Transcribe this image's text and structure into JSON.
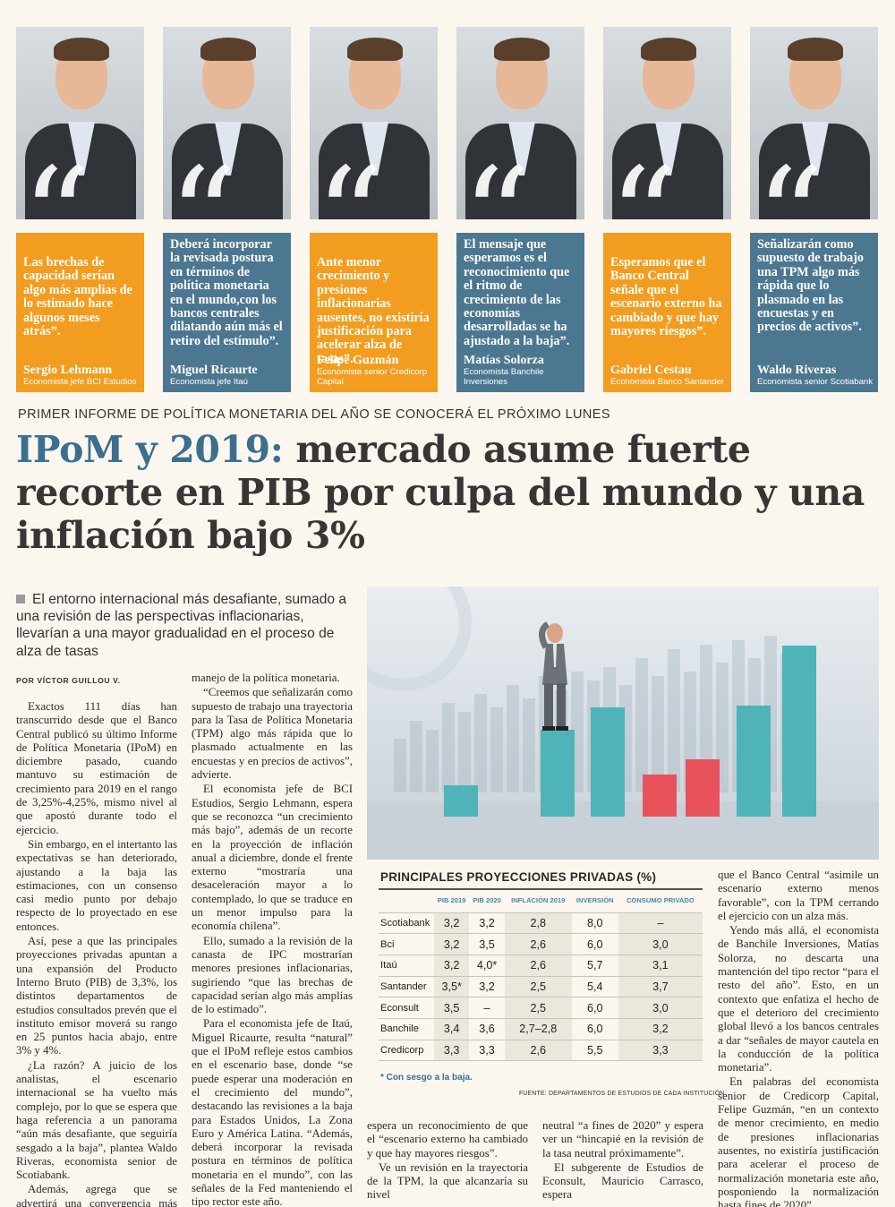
{
  "panels": [
    {
      "color": "orange",
      "quote": "Las brechas de capacidad serían algo más amplias de lo estimado hace algunos meses atrás”.",
      "name": "Sergio Lehmann",
      "role": "Economista jefe BCI Estudios"
    },
    {
      "color": "blue",
      "quote": "Deberá incorporar la revisada postura en términos de política monetaria en el mundo,con los bancos centrales dilatando aún más el retiro del estímulo”.",
      "name": "Miguel Ricaurte",
      "role": "Economista jefe Itaú"
    },
    {
      "color": "orange",
      "quote": "Ante menor crecimiento y presiones inflacionarias ausentes, no existiría justificación para acelerar alza de tasas”.",
      "name": "Felipe Guzmán",
      "role": "Economista senior Credicorp Capital"
    },
    {
      "color": "blue",
      "quote": "El mensaje que esperamos es el reconocimiento que el ritmo de crecimiento de las economías desarrolladas se ha ajustado a la baja”.",
      "name": "Matías Solorza",
      "role": "Economista Banchile Inversiones"
    },
    {
      "color": "orange",
      "quote": "Esperamos que el Banco Central señale que el escenario externo ha cambiado y que hay mayores riesgos”.",
      "name": "Gabriel Cestau",
      "role": "Economista Banco Santander"
    },
    {
      "color": "blue",
      "quote": "Señalizarán como supuesto de trabajo una TPM algo más rápida que lo plasmado en las encuestas y en precios de activos”.",
      "name": "Waldo Riveras",
      "role": "Economista senior Scotiabank"
    }
  ],
  "kicker": "PRIMER INFORME DE POLÍTICA MONETARIA DEL AÑO SE CONOCERÁ EL PRÓXIMO LUNES",
  "headline": {
    "accent": "IPoM y 2019:",
    "rest": " mercado asume fuerte recorte en PIB por culpa del mundo y una inflación bajo 3%"
  },
  "deck": "El entorno internacional más desafiante, sumado a una revisión de las perspectivas inflacionarias, llevarían a una mayor gradualidad en el proceso de alza de tasas",
  "byline": "POR VÍCTOR GUILLOU V.",
  "col1": [
    "Exactos 111 días han transcurrido desde que el Banco Central publicó su último Informe de Política Monetaria (IPoM) en diciembre pasado, cuando mantuvo su estimación de crecimiento para 2019 en el rango de 3,25%-4,25%, mismo nivel al que apostó durante todo el ejercicio.",
    "Sin embargo, en el intertanto las expectativas se han deteriorado, ajustando a la baja las estimaciones, con un consenso casi medio punto por debajo respecto de lo proyectado en ese entonces.",
    "Así, pese a que las principales proyecciones privadas apuntan a una expansión del Producto Interno Bruto (PIB) de 3,3%, los distintos departamentos de estudios consultados prevén que el instituto emisor moverá su rango en 25 puntos hacia abajo, entre 3% y 4%.",
    "¿La razón? A juicio de los analistas, el escenario internacional se ha vuelto más complejo, por lo que se espera que haga referencia a un panorama “aún más desafiante, que seguiría sesgado a la baja”, plantea Waldo Riveras, economista senior de Scotiabank.",
    "Además, agrega que se advertirá una convergencia más lenta de la inflación hacia el 3%, lo que llevará a reforzar el mensaje de cautela “e, incluso mayor gradualidad”, en el"
  ],
  "col2": [
    "manejo de la política monetaria.",
    "“Creemos que señalizarán como supuesto de trabajo una trayectoria para la Tasa de Política Monetaria (TPM) algo más rápida que lo plasmado actualmente en las encuestas y en precios de activos”, advierte.",
    "El economista jefe de BCI Estudios, Sergio Lehmann, espera que se reconozca “un crecimiento más bajo”, además de un recorte en la proyección de inflación anual a diciembre, donde el frente externo “mostraría una desaceleración mayor a lo contemplado, lo que se traduce en un menor impulso para la economía chilena”.",
    "Ello, sumado a la revisión de la canasta de IPC mostrarían menores presiones inflacionarias, sugiriendo “que las brechas de capacidad serían algo más amplias de lo estimado”.",
    "Para el economista jefe de Itaú, Miguel Ricaurte, resulta “natural” que el IPoM refleje estos cambios en el escenario base, donde “se puede esperar una moderación en el crecimiento del mundo”, destacando las revisiones a la baja para Estados Unidos, La Zona Euro y América Latina. “Además, deberá incorporar la revisada postura en términos de política monetaria en el mundo”, con las señales de la Fed manteniendo el tipo rector este año.",
    "Gabriel Cestau, economista de Banco Santander, enfatiza que"
  ],
  "col3": [
    "espera un reconocimiento de que el “escenario externo ha cambiado y que hay mayores riesgos”.",
    "Ve un revisión en la trayectoria de la TPM, la que alcanzaría su nivel"
  ],
  "col4": [
    "neutral “a fines de 2020” y espera ver un “hincapié en la revisión de la tasa neutral próximamente”.",
    "El subgerente de Estudios de Econsult, Mauricio Carrasco, espera"
  ],
  "col5": [
    "que el Banco Central “asimile un escenario externo menos favorable”, con la TPM cerrando el ejercicio con un alza más.",
    "Yendo más allá, el economista de Banchile Inversiones, Matías Solorza, no descarta una mantención del tipo rector “para el resto del año”. Esto, en un contexto que enfatiza el hecho de que el deterioro del crecimiento global llevó a los bancos centrales a dar “señales de mayor cautela en la conducción de la política monetaria”.",
    "En palabras del economista senior de Credicorp Capital, Felipe Guzmán, “en un contexto de menor crecimiento, en medio de presiones inflacionarias ausentes, no existiría justificación para acelerar el proceso de normalización monetaria este año, posponiendo la normalización hasta fines de 2020”."
  ],
  "table": {
    "title": "PRINCIPALES PROYECCIONES PRIVADAS (%)",
    "headers": [
      "",
      "PIB 2019",
      "PIB 2020",
      "INFLACIÓN 2019",
      "INVERSIÓN",
      "CONSUMO PRIVADO"
    ],
    "rows": [
      [
        "Scotiabank",
        "3,2",
        "3,2",
        "2,8",
        "8,0",
        "–"
      ],
      [
        "Bci",
        "3,2",
        "3,5",
        "2,6",
        "6,0",
        "3,0"
      ],
      [
        "Itaú",
        "3,2",
        "4,0*",
        "2,6",
        "5,7",
        "3,1"
      ],
      [
        "Santander",
        "3,5*",
        "3,2",
        "2,5",
        "5,4",
        "3,7"
      ],
      [
        "Econsult",
        "3,5",
        "–",
        "2,5",
        "6,0",
        "3,0"
      ],
      [
        "Banchile",
        "3,4",
        "3,6",
        "2,7–2,8",
        "6,0",
        "3,2"
      ],
      [
        "Credicorp",
        "3,3",
        "3,3",
        "2,6",
        "5,5",
        "3,3"
      ]
    ],
    "note": "* Con sesgo a la baja.",
    "source": "FUENTE: DEPARTAMENTOS DE ESTUDIOS DE CADA INSTITUCIÓN."
  },
  "colors": {
    "orange": "#f29d1f",
    "blue": "#4c7791",
    "accent": "#3c6f8d",
    "bar_teal": "#4fb4b8",
    "bar_red": "#e8525a"
  }
}
